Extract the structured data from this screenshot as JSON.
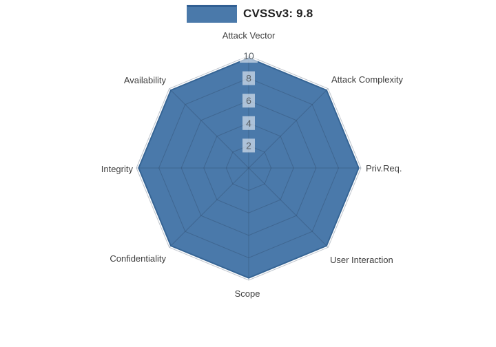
{
  "legend": {
    "items": [
      {
        "label": "CVSSv3: 9.8"
      }
    ]
  },
  "chart_data": {
    "type": "radar",
    "title": "",
    "categories": [
      "Attack Vector",
      "Attack Complexity",
      "Priv.Req.",
      "User Interaction",
      "Scope",
      "Confidentiality",
      "Integrity",
      "Availability"
    ],
    "series": [
      {
        "name": "CVSSv3: 9.8",
        "values": [
          9.8,
          9.8,
          9.8,
          9.8,
          9.8,
          9.8,
          9.8,
          9.8
        ],
        "fill_color": "#4a79aa",
        "line_color": "#356494"
      }
    ],
    "radial_ticks": [
      "2",
      "4",
      "6",
      "8",
      "10"
    ],
    "radial_range": [
      0,
      10
    ],
    "grid": true,
    "legend_position": "top",
    "colors": {
      "grid_line": "rgba(40,60,85,0.30)",
      "tick_text": "#596066",
      "tick_bg": "rgba(255,255,255,0.55)",
      "axis_label": "#3d3d3d"
    }
  }
}
